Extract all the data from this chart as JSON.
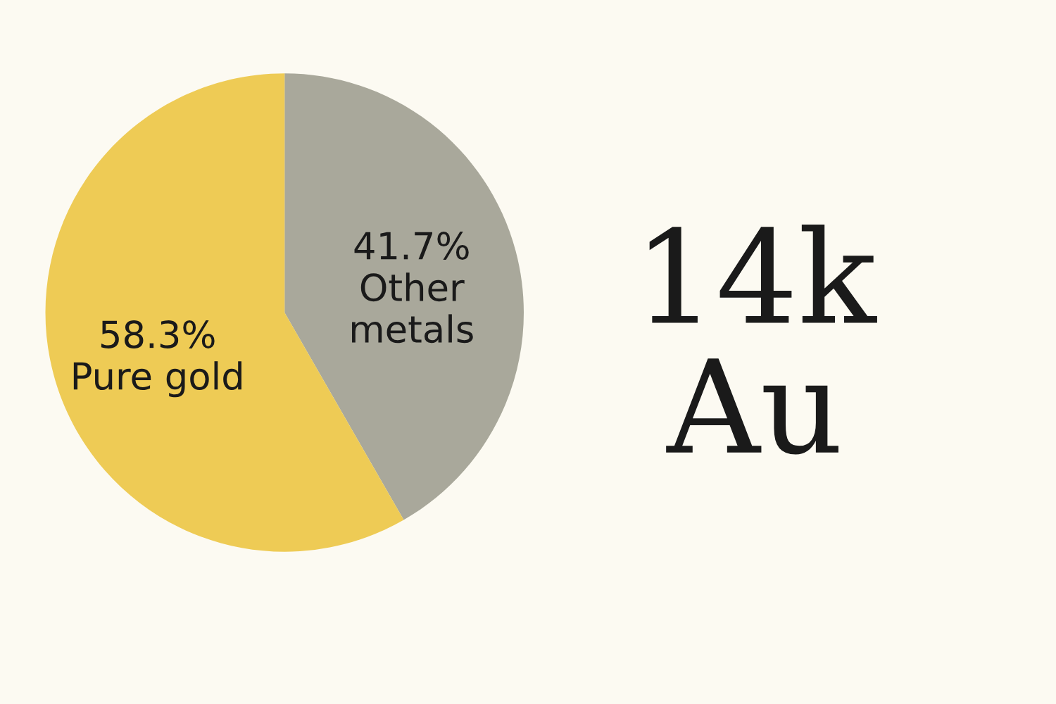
{
  "chart_data": {
    "type": "pie",
    "title": "14k\nAu",
    "categories": [
      "Other metals",
      "Pure gold"
    ],
    "values": [
      41.7,
      58.3
    ],
    "value_labels": [
      "41.7%",
      "58.3%"
    ],
    "colors": [
      "#a9a89b",
      "#eecb55"
    ]
  }
}
